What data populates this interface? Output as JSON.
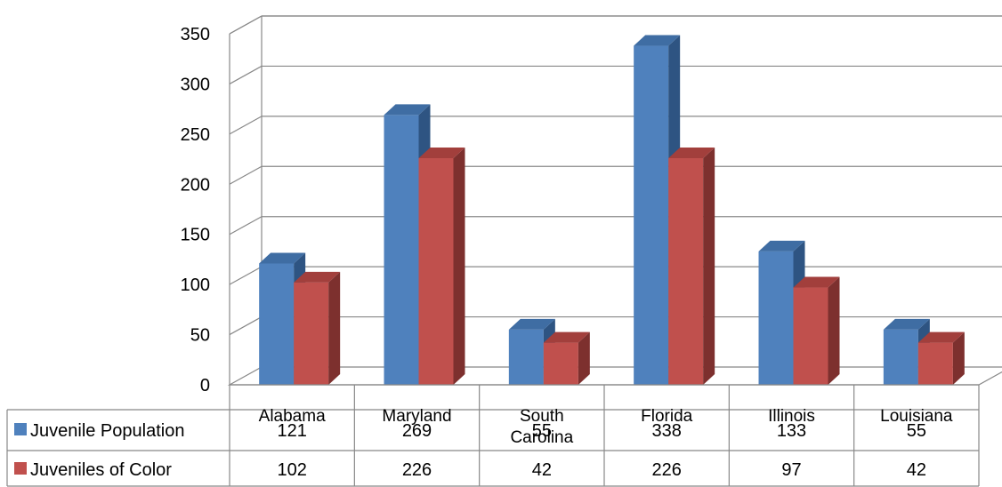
{
  "chart_data": {
    "type": "bar",
    "categories": [
      "Alabama",
      "Maryland",
      "South Carolina",
      "Florida",
      "Illinois",
      "Louisiana"
    ],
    "category_lines": [
      [
        "Alabama"
      ],
      [
        "Maryland"
      ],
      [
        "South",
        "Carolina"
      ],
      [
        "Florida"
      ],
      [
        "Illinois"
      ],
      [
        "Louisiana"
      ]
    ],
    "series": [
      {
        "name": "Juvenile Population",
        "values": [
          121,
          269,
          55,
          338,
          133,
          55
        ],
        "color": "#4f81bd",
        "side_color": "#2e5482",
        "top_color": "#3f6da3"
      },
      {
        "name": "Juveniles of Color",
        "values": [
          102,
          226,
          42,
          226,
          97,
          42
        ],
        "color": "#c0504d",
        "side_color": "#7d302e",
        "top_color": "#a23f3c"
      }
    ],
    "ylim": [
      0,
      350
    ],
    "y_ticks": [
      "0",
      "50",
      "100",
      "150",
      "200",
      "250",
      "300",
      "350"
    ],
    "grid": true,
    "data_table": true,
    "legend_placement": "data-table",
    "style": "3d-clustered-column"
  }
}
